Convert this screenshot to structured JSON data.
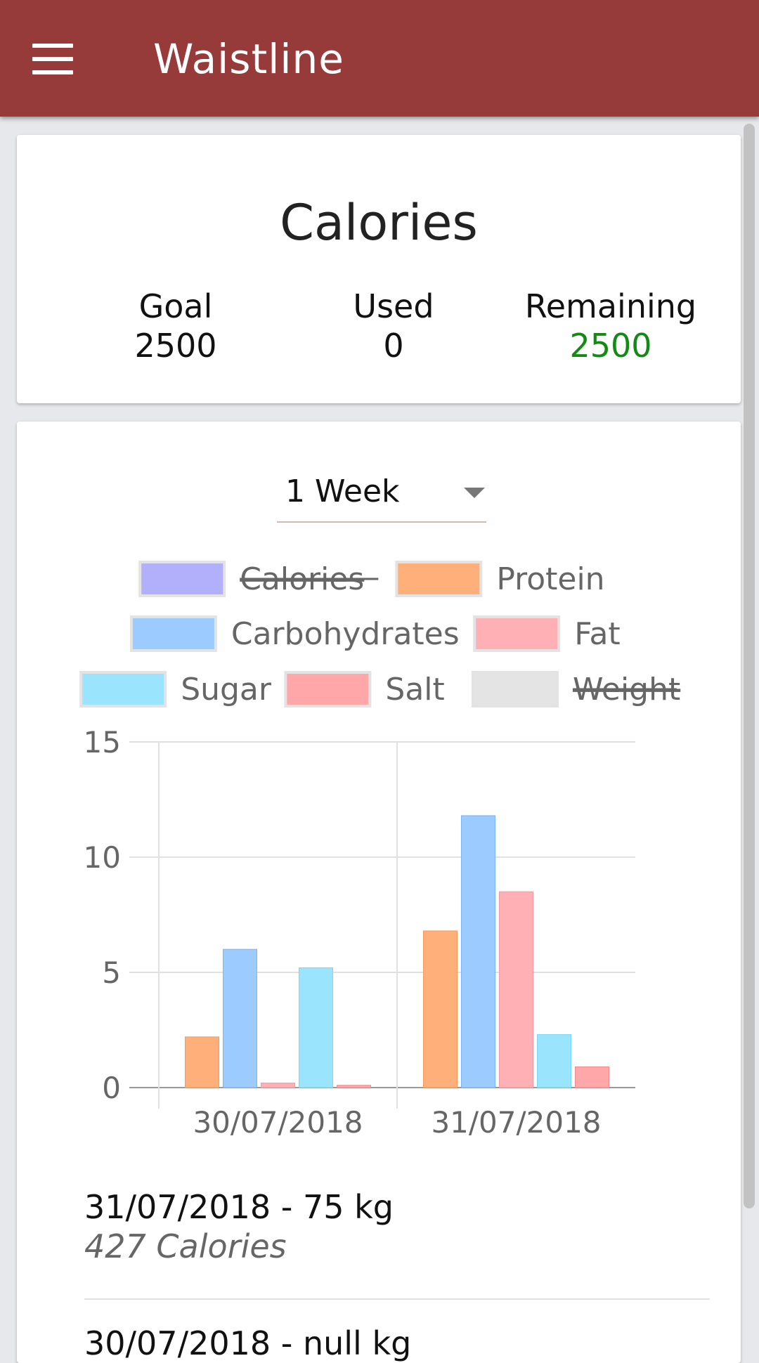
{
  "app": {
    "title": "Waistline",
    "menu_icon": "hamburger-menu-icon",
    "bar_color": "#963a3a"
  },
  "calories_card": {
    "title": "Calories",
    "goal_label": "Goal",
    "goal_value": "2500",
    "used_label": "Used",
    "used_value": "0",
    "remaining_label": "Remaining",
    "remaining_value": "2500",
    "remaining_color": "#138a13"
  },
  "range_select": {
    "value": "1 Week"
  },
  "chart_data": {
    "type": "bar",
    "categories": [
      "30/07/2018",
      "31/07/2018"
    ],
    "series": [
      {
        "name": "Calories",
        "values": [
          null,
          null
        ],
        "hidden": true,
        "color": "#b3b0fb",
        "border": "#9b99f0"
      },
      {
        "name": "Protein",
        "values": [
          2.2,
          6.8
        ],
        "hidden": false,
        "color": "#ffb07a",
        "border": "#f79a5c"
      },
      {
        "name": "Carbohydrates",
        "values": [
          6.0,
          11.8
        ],
        "hidden": false,
        "color": "#9ccbff",
        "border": "#7ab5f5"
      },
      {
        "name": "Fat",
        "values": [
          0.2,
          8.5
        ],
        "hidden": false,
        "color": "#ffb0b5",
        "border": "#f59aa0"
      },
      {
        "name": "Sugar",
        "values": [
          5.2,
          2.3
        ],
        "hidden": false,
        "color": "#9be4fd",
        "border": "#7dd6f5"
      },
      {
        "name": "Salt",
        "values": [
          0.1,
          0.9
        ],
        "hidden": false,
        "color": "#ffa7a9",
        "border": "#f28c8f"
      },
      {
        "name": "Weight",
        "values": [
          null,
          null
        ],
        "hidden": true,
        "color": "#e4e4e4",
        "border": "#cfcfcf"
      }
    ],
    "y_ticks": [
      "0",
      "5",
      "10",
      "15"
    ],
    "ylim": [
      0,
      15
    ],
    "grid": true,
    "legend_position": "top"
  },
  "entries": [
    {
      "date_weight": "31/07/2018 - 75 kg",
      "calories": "427 Calories"
    },
    {
      "date_weight": "30/07/2018 - null kg",
      "calories": ""
    }
  ]
}
